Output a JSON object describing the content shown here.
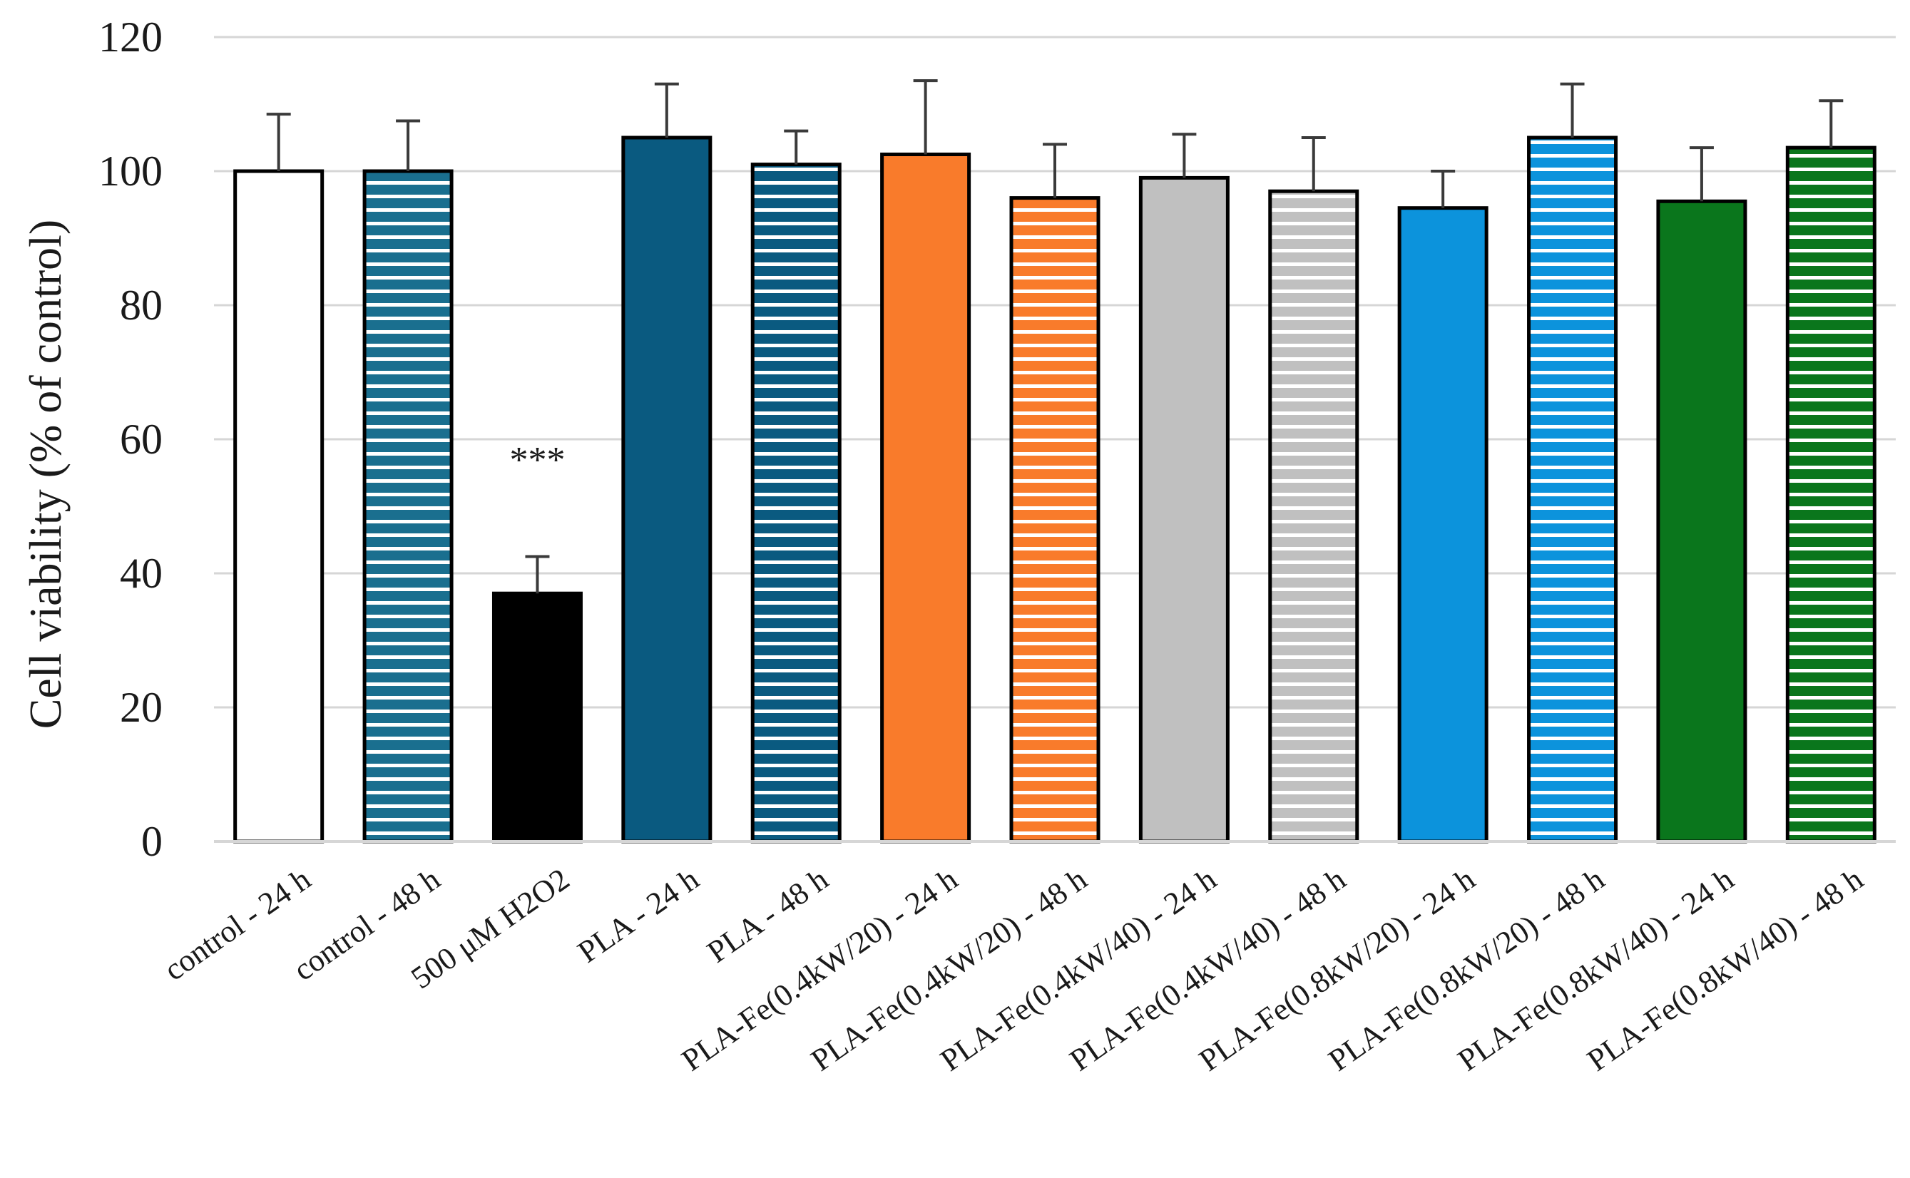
{
  "chart_data": {
    "type": "bar",
    "title": "",
    "xlabel": "",
    "ylabel": "Cell viability (% of control)",
    "ylim": [
      0,
      120
    ],
    "yticks": [
      0,
      20,
      40,
      60,
      80,
      100,
      120
    ],
    "grid": true,
    "legend": "none",
    "categories": [
      "control - 24 h",
      "control - 48 h",
      "500 μM H2O2",
      "PLA - 24 h",
      "PLA - 48 h",
      "PLA-Fe(0.4kW/20) - 24 h",
      "PLA-Fe(0.4kW/20) - 48 h",
      "PLA-Fe(0.4kW/40) - 24 h",
      "PLA-Fe(0.4kW/40) - 48 h",
      "PLA-Fe(0.8kW/20) - 24 h",
      "PLA-Fe(0.8kW/20) - 48 h",
      "PLA-Fe(0.8kW/40) - 24 h",
      "PLA-Fe(0.8kW/40) - 48 h"
    ],
    "values": [
      100,
      100,
      37,
      105,
      101,
      102.5,
      96,
      99,
      97,
      94.5,
      105,
      95.5,
      103.5
    ],
    "errors": [
      8.5,
      7.5,
      5.5,
      8,
      5,
      11,
      8,
      6.5,
      8,
      5.5,
      8,
      8,
      7
    ],
    "colors": [
      "#ffffff",
      "#1a6f8f",
      "#000000",
      "#0a5a80",
      "#0a5a80",
      "#f97b2b",
      "#f97b2b",
      "#c0c0c0",
      "#c0c0c0",
      "#0c93dc",
      "#0c93dc",
      "#0a761c",
      "#0a761c"
    ],
    "striped": [
      false,
      true,
      false,
      false,
      true,
      false,
      true,
      false,
      true,
      false,
      true,
      false,
      true
    ],
    "annotations": [
      {
        "category": "500 μM H2O2",
        "text": "***",
        "y": 57
      }
    ]
  }
}
